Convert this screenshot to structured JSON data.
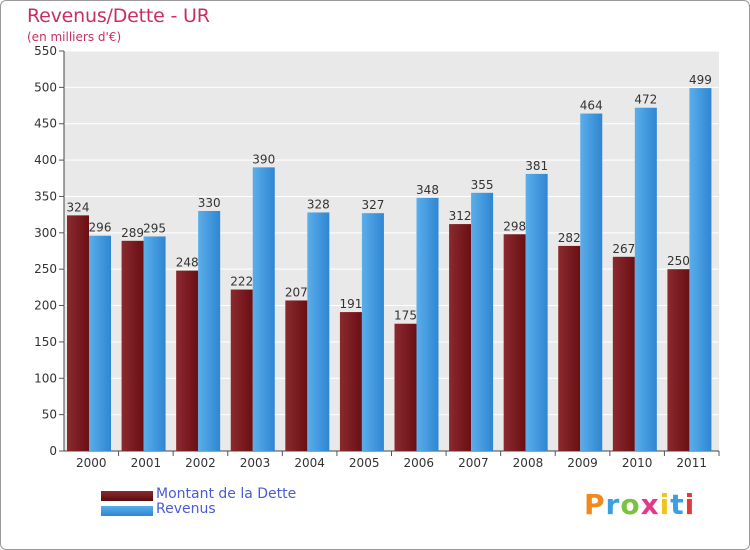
{
  "chart_data": {
    "type": "bar",
    "title": "Revenus/Dette - UR",
    "subtitle": "(en milliers d'€)",
    "categories": [
      "2000",
      "2001",
      "2002",
      "2003",
      "2004",
      "2005",
      "2006",
      "2007",
      "2008",
      "2009",
      "2010",
      "2011"
    ],
    "series": [
      {
        "name": "Montant de la Dette",
        "color": "#7a1a1e",
        "values": [
          324,
          289,
          248,
          222,
          207,
          191,
          175,
          312,
          298,
          282,
          267,
          250
        ]
      },
      {
        "name": "Revenus",
        "color": "#3b95de",
        "values": [
          296,
          295,
          330,
          390,
          328,
          327,
          348,
          355,
          381,
          464,
          472,
          499
        ]
      }
    ],
    "ylim": [
      0,
      550
    ],
    "yticks": [
      0,
      50,
      100,
      150,
      200,
      250,
      300,
      350,
      400,
      450,
      500,
      550
    ],
    "grid": true,
    "legend_position": "bottom-left"
  },
  "logo": {
    "text": "Proxiti",
    "letter_colors": [
      "#f08a1c",
      "#3aa0e0",
      "#7cc242",
      "#e23a8b",
      "#f0c419",
      "#3aa0e0",
      "#e23a3a"
    ]
  }
}
